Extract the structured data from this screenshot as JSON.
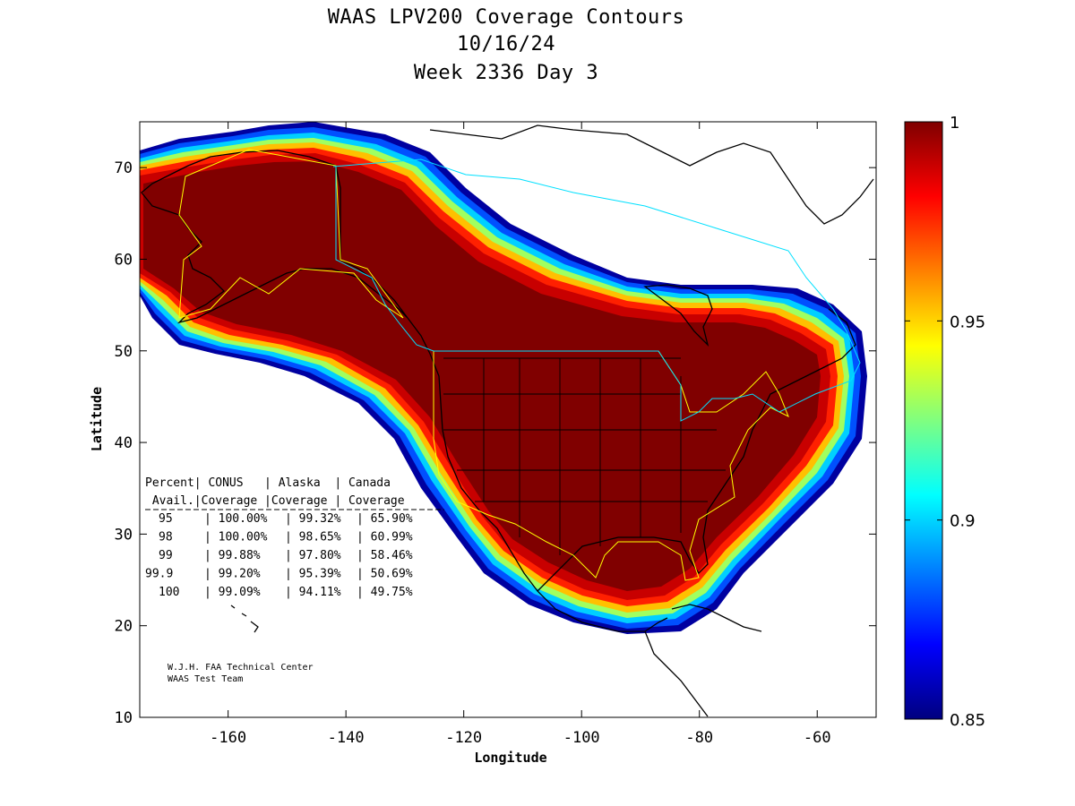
{
  "title": {
    "line1": "WAAS LPV200 Coverage Contours",
    "line2": "10/16/24",
    "line3": "Week 2336 Day 3"
  },
  "axes": {
    "xlabel": "Longitude",
    "ylabel": "Latitude",
    "xlim": [
      -175,
      -50
    ],
    "ylim": [
      10,
      75
    ],
    "xticks": [
      -160,
      -140,
      -120,
      -100,
      -80,
      -60
    ],
    "yticks": [
      10,
      20,
      30,
      40,
      50,
      60,
      70
    ]
  },
  "colorbar": {
    "min": 0.85,
    "max": 1,
    "ticks": [
      "1",
      "0.95",
      "0.9",
      "0.85"
    ],
    "colormap": "jet"
  },
  "table": {
    "header1": "Percent| CONUS   | Alaska  | Canada",
    "header2": " Avail.|Coverage |Coverage | Coverage",
    "rows": [
      {
        "pct": "95",
        "conus": "100.00%",
        "alaska": "99.32%",
        "canada": "65.90%"
      },
      {
        "pct": "98",
        "conus": "100.00%",
        "alaska": "98.65%",
        "canada": "60.99%"
      },
      {
        "pct": "99",
        "conus": "99.88%",
        "alaska": "97.80%",
        "canada": "58.46%"
      },
      {
        "pct": "99.9",
        "conus": "99.20%",
        "alaska": "95.39%",
        "canada": "50.69%"
      },
      {
        "pct": "100",
        "conus": "99.09%",
        "alaska": "94.11%",
        "canada": "49.75%"
      }
    ]
  },
  "credits": {
    "line1": "W.J.H. FAA Technical Center",
    "line2": "WAAS Test Team"
  }
}
